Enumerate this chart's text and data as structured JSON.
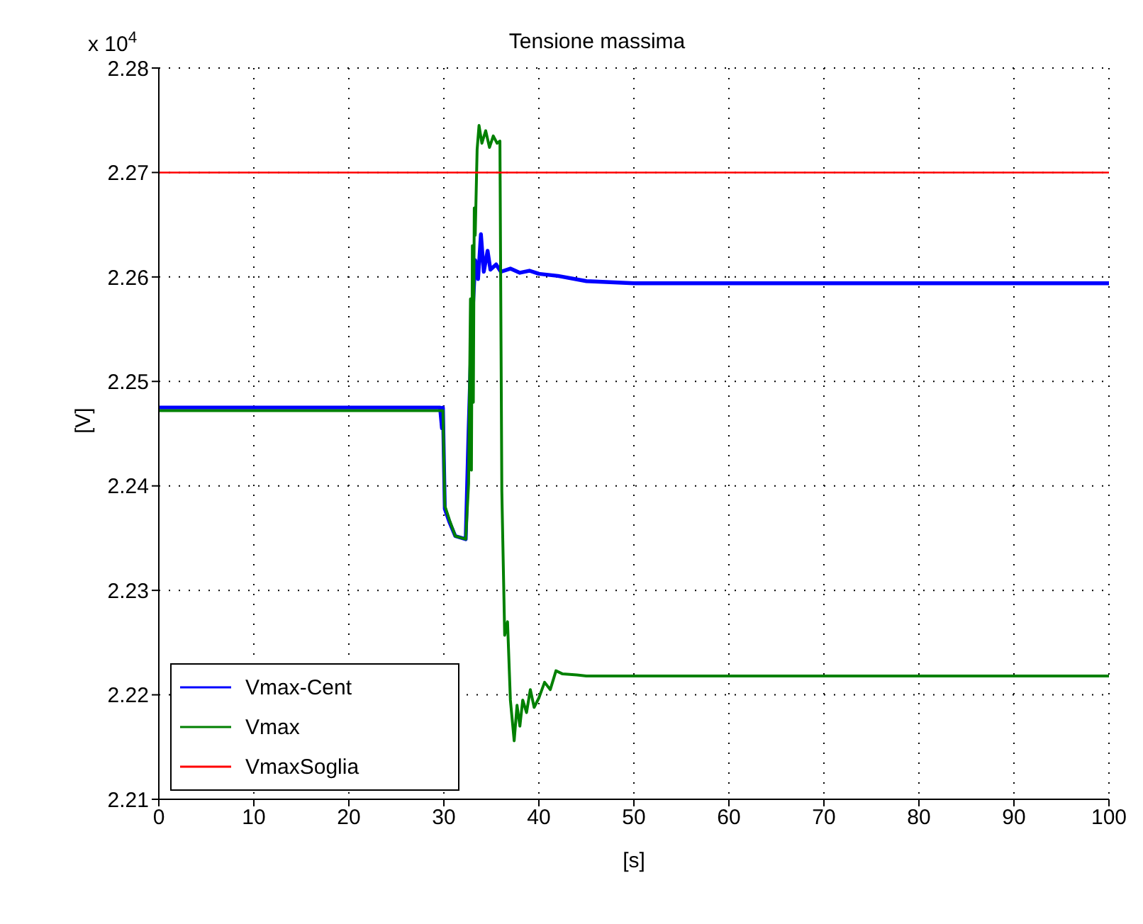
{
  "chart_data": {
    "type": "line",
    "title": "Tensione massima",
    "xlabel": "[s]",
    "ylabel": "[V]",
    "annotations": [
      "x 10$^{4}$"
    ],
    "xlim": [
      0,
      100
    ],
    "xticks": [
      0,
      10,
      20,
      30,
      40,
      50,
      60,
      70,
      80,
      90,
      100
    ],
    "ylim": [
      2.21,
      2.28
    ],
    "yticks": [
      2.21,
      2.22,
      2.23,
      2.24,
      2.25,
      2.26,
      2.27,
      2.28
    ],
    "grid": true,
    "legend": "bottom left",
    "marker": "none",
    "line_style": "solid",
    "series": [
      {
        "name": "Vmax-Cent",
        "color": "#0000ff",
        "x": [
          0,
          29.6,
          29.8,
          29.9,
          30.1,
          30.6,
          31.2,
          32.3,
          32.6,
          32.9,
          33.3,
          33.6,
          33.9,
          34.2,
          34.6,
          34.9,
          35.5,
          36,
          37,
          38,
          39,
          40,
          42,
          45,
          50,
          60,
          70,
          80,
          90,
          100
        ],
        "values": [
          2.2475,
          2.2475,
          2.2455,
          2.2475,
          2.2378,
          2.2365,
          2.2352,
          2.2349,
          2.2452,
          2.2542,
          2.2616,
          2.2598,
          2.2641,
          2.2605,
          2.2625,
          2.2607,
          2.2612,
          2.2605,
          2.2608,
          2.2604,
          2.2606,
          2.2603,
          2.2601,
          2.2596,
          2.2594,
          2.2594,
          2.2594,
          2.2594,
          2.2594,
          2.2594
        ]
      },
      {
        "name": "Vmax",
        "color": "#008000",
        "x": [
          0,
          29.9,
          30.1,
          30.6,
          31.2,
          32.3,
          32.6,
          32.8,
          32.9,
          33.0,
          33.1,
          33.2,
          33.3,
          33.5,
          33.7,
          34.0,
          34.4,
          34.8,
          35.2,
          35.6,
          35.9,
          36.1,
          36.4,
          36.7,
          37.0,
          37.4,
          37.7,
          38.0,
          38.3,
          38.7,
          39.1,
          39.5,
          40,
          40.6,
          41.2,
          41.8,
          42.5,
          44,
          45,
          50,
          60,
          70,
          80,
          90,
          100
        ],
        "values": [
          2.2472,
          2.2472,
          2.2381,
          2.2367,
          2.2352,
          2.2349,
          2.2402,
          2.2579,
          2.2415,
          2.263,
          2.248,
          2.2666,
          2.264,
          2.2722,
          2.2745,
          2.2728,
          2.274,
          2.2724,
          2.2735,
          2.2728,
          2.273,
          2.2395,
          2.2257,
          2.227,
          2.2195,
          2.2156,
          2.219,
          2.217,
          2.2195,
          2.2183,
          2.2205,
          2.2188,
          2.2197,
          2.2212,
          2.2205,
          2.2223,
          2.222,
          2.2219,
          2.2218,
          2.2218,
          2.2218,
          2.2218,
          2.2218,
          2.2218,
          2.2218
        ]
      },
      {
        "name": "VmaxSoglia",
        "color": "#ff0000",
        "x": [
          0,
          100
        ],
        "values": [
          2.27,
          2.27
        ]
      }
    ]
  }
}
